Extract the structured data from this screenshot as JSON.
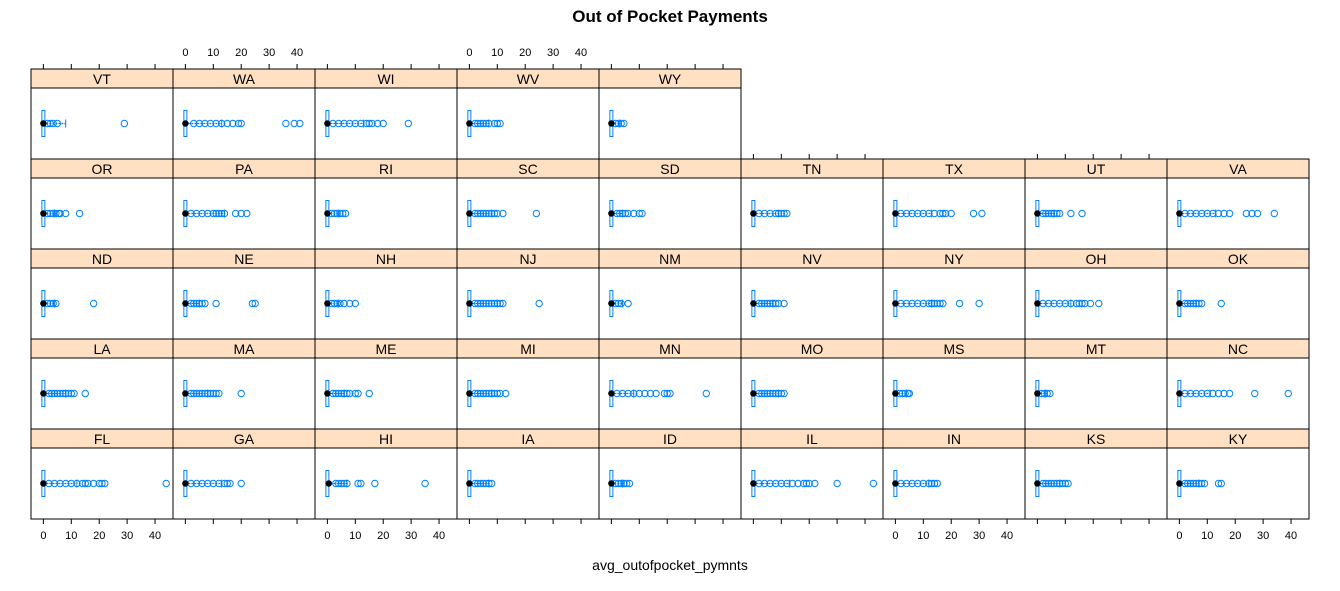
{
  "chart_data": {
    "type": "box",
    "title": "Out of Pocket Payments",
    "xlabel": "avg_outofpocket_pymnts",
    "ylabel": "",
    "xlim": [
      -3,
      45
    ],
    "x_ticks": [
      0,
      10,
      20,
      30,
      40
    ],
    "grid": false,
    "legend": "none",
    "colors": {
      "strip": "#ffe0c2",
      "box": "#0080ff",
      "median_dot": "#000000",
      "frame": "#000000"
    },
    "layout": {
      "columns": 9,
      "rows": 5
    },
    "panels": [
      {
        "state": "VT",
        "row": 5,
        "col": 1,
        "max": 8,
        "outliers": [
          1.5,
          2.5,
          3.5,
          5,
          29
        ]
      },
      {
        "state": "WA",
        "row": 5,
        "col": 2,
        "max": 13,
        "outliers": [
          3,
          5,
          7,
          9,
          11,
          13,
          15,
          17,
          19,
          20,
          36,
          39,
          41
        ]
      },
      {
        "state": "WI",
        "row": 5,
        "col": 3,
        "max": 13,
        "outliers": [
          2,
          4,
          6,
          8,
          10,
          12,
          14,
          15,
          16,
          18,
          20,
          29
        ]
      },
      {
        "state": "WV",
        "row": 5,
        "col": 4,
        "max": 7,
        "outliers": [
          2,
          3,
          4,
          5,
          6,
          7,
          9,
          10,
          11
        ]
      },
      {
        "state": "WY",
        "row": 5,
        "col": 5,
        "max": 3,
        "outliers": [
          1.5,
          2.5,
          3.5,
          4.5
        ]
      },
      {
        "state": "OR",
        "row": 4,
        "col": 1,
        "max": 4,
        "outliers": [
          1.5,
          2.5,
          3.5,
          4.5,
          5.5,
          6,
          8,
          13
        ]
      },
      {
        "state": "PA",
        "row": 4,
        "col": 2,
        "max": 14,
        "outliers": [
          2,
          4,
          6,
          8,
          10,
          11,
          12,
          13,
          14,
          18,
          20,
          22
        ]
      },
      {
        "state": "RI",
        "row": 4,
        "col": 3,
        "max": 4,
        "outliers": [
          1.5,
          2.5,
          3.5,
          4.5,
          5.5,
          6.5
        ]
      },
      {
        "state": "SC",
        "row": 4,
        "col": 4,
        "max": 8,
        "outliers": [
          2,
          3,
          4,
          5,
          6,
          7,
          8,
          9,
          10,
          12,
          24
        ]
      },
      {
        "state": "SD",
        "row": 4,
        "col": 5,
        "max": 4,
        "outliers": [
          2,
          3,
          4,
          5,
          6,
          8,
          10,
          11
        ]
      },
      {
        "state": "TN",
        "row": 4,
        "col": 6,
        "max": 9,
        "outliers": [
          2,
          4,
          6,
          8,
          9,
          10,
          11,
          12
        ]
      },
      {
        "state": "TX",
        "row": 4,
        "col": 7,
        "max": 13,
        "outliers": [
          2,
          4,
          6,
          8,
          10,
          12,
          14,
          16,
          17,
          18,
          20,
          28,
          31
        ]
      },
      {
        "state": "UT",
        "row": 4,
        "col": 8,
        "max": 6,
        "outliers": [
          2,
          3,
          4,
          5,
          6,
          7,
          8,
          12,
          16
        ]
      },
      {
        "state": "VA",
        "row": 4,
        "col": 9,
        "max": 13,
        "outliers": [
          2,
          4,
          6,
          8,
          10,
          12,
          14,
          16,
          18,
          24,
          26,
          28,
          34
        ]
      },
      {
        "state": "ND",
        "row": 3,
        "col": 1,
        "max": 4,
        "outliers": [
          1.5,
          2.5,
          3.5,
          4.5,
          18
        ]
      },
      {
        "state": "NE",
        "row": 3,
        "col": 2,
        "max": 5,
        "outliers": [
          2,
          3,
          4,
          5,
          6,
          7,
          11,
          24,
          25
        ]
      },
      {
        "state": "NH",
        "row": 3,
        "col": 3,
        "max": 4,
        "outliers": [
          1.5,
          2.5,
          3.5,
          4.5,
          6,
          8,
          10
        ]
      },
      {
        "state": "NJ",
        "row": 3,
        "col": 4,
        "max": 10,
        "outliers": [
          2,
          3,
          4,
          5,
          6,
          7,
          8,
          9,
          10,
          11,
          12,
          25
        ]
      },
      {
        "state": "NM",
        "row": 3,
        "col": 5,
        "max": 4,
        "outliers": [
          1.5,
          2.5,
          3.5,
          6
        ]
      },
      {
        "state": "NV",
        "row": 3,
        "col": 6,
        "max": 7,
        "outliers": [
          2,
          3,
          4,
          5,
          6,
          7,
          8,
          9,
          11
        ]
      },
      {
        "state": "NY",
        "row": 3,
        "col": 7,
        "max": 13,
        "outliers": [
          2,
          4,
          6,
          8,
          10,
          12,
          13,
          14,
          15,
          16,
          17,
          23,
          30
        ]
      },
      {
        "state": "OH",
        "row": 3,
        "col": 8,
        "max": 12,
        "outliers": [
          2,
          4,
          6,
          8,
          10,
          12,
          14,
          15,
          16,
          17,
          19,
          22
        ]
      },
      {
        "state": "OK",
        "row": 3,
        "col": 9,
        "max": 6,
        "outliers": [
          2,
          3,
          4,
          5,
          6,
          7,
          8,
          15
        ]
      },
      {
        "state": "LA",
        "row": 2,
        "col": 1,
        "max": 8,
        "outliers": [
          2,
          3,
          4,
          5,
          6,
          7,
          8,
          9,
          10,
          11,
          15
        ]
      },
      {
        "state": "MA",
        "row": 2,
        "col": 2,
        "max": 8,
        "outliers": [
          2,
          3,
          4,
          5,
          6,
          7,
          8,
          9,
          10,
          11,
          12,
          20
        ]
      },
      {
        "state": "ME",
        "row": 2,
        "col": 3,
        "max": 6,
        "outliers": [
          2,
          3,
          4,
          5,
          6,
          7,
          8,
          10,
          11,
          15
        ]
      },
      {
        "state": "MI",
        "row": 2,
        "col": 4,
        "max": 8,
        "outliers": [
          2,
          3,
          4,
          5,
          6,
          7,
          8,
          9,
          10,
          11,
          13
        ]
      },
      {
        "state": "MN",
        "row": 2,
        "col": 5,
        "max": 8,
        "outliers": [
          2,
          4,
          6,
          8,
          10,
          12,
          14,
          16,
          19,
          20,
          21,
          34
        ]
      },
      {
        "state": "MO",
        "row": 2,
        "col": 6,
        "max": 9,
        "outliers": [
          2,
          3,
          4,
          5,
          6,
          7,
          8,
          9,
          10,
          11
        ]
      },
      {
        "state": "MS",
        "row": 2,
        "col": 7,
        "max": 4,
        "outliers": [
          1.5,
          2.5,
          3.5,
          4.5,
          5
        ]
      },
      {
        "state": "MT",
        "row": 2,
        "col": 8,
        "max": 3,
        "outliers": [
          1.5,
          2.5,
          3.5,
          4.5
        ]
      },
      {
        "state": "NC",
        "row": 2,
        "col": 9,
        "max": 11,
        "outliers": [
          2,
          4,
          6,
          8,
          10,
          12,
          14,
          16,
          18,
          27,
          39
        ]
      },
      {
        "state": "FL",
        "row": 1,
        "col": 1,
        "max": 12,
        "outliers": [
          2,
          4,
          6,
          8,
          10,
          12,
          14,
          15,
          16,
          18,
          20,
          21,
          22,
          44
        ]
      },
      {
        "state": "GA",
        "row": 1,
        "col": 2,
        "max": 13,
        "outliers": [
          2,
          4,
          6,
          8,
          10,
          12,
          14,
          15,
          16,
          20
        ]
      },
      {
        "state": "HI",
        "row": 1,
        "col": 3,
        "max": 7,
        "median_dot": 0.5,
        "outliers": [
          3,
          4,
          5,
          6,
          7,
          11,
          12,
          17,
          35
        ]
      },
      {
        "state": "IA",
        "row": 1,
        "col": 4,
        "max": 7,
        "outliers": [
          2,
          3,
          4,
          5,
          6,
          7,
          8
        ]
      },
      {
        "state": "ID",
        "row": 1,
        "col": 5,
        "max": 4,
        "outliers": [
          1.5,
          2.5,
          3.5,
          4.5,
          5.5,
          6.5
        ]
      },
      {
        "state": "IL",
        "row": 1,
        "col": 6,
        "max": 13,
        "outliers": [
          2,
          4,
          6,
          8,
          10,
          12,
          14,
          16,
          18,
          19,
          20,
          22,
          30,
          43
        ]
      },
      {
        "state": "IN",
        "row": 1,
        "col": 7,
        "max": 12,
        "outliers": [
          2,
          4,
          6,
          8,
          10,
          12,
          13,
          14,
          15
        ]
      },
      {
        "state": "KS",
        "row": 1,
        "col": 8,
        "max": 8,
        "outliers": [
          2,
          3,
          4,
          5,
          6,
          7,
          8,
          9,
          10,
          11
        ]
      },
      {
        "state": "KY",
        "row": 1,
        "col": 9,
        "max": 7,
        "outliers": [
          2,
          3,
          4,
          5,
          6,
          7,
          8,
          9,
          14,
          15
        ]
      }
    ]
  }
}
